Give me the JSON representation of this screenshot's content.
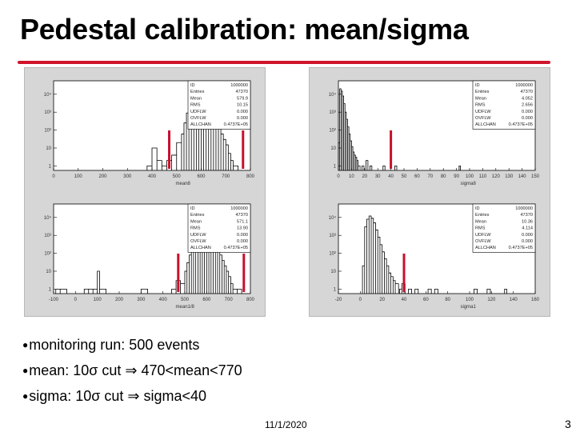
{
  "slide": {
    "title": "Pedestal calibration: mean/sigma",
    "bullets": [
      "monitoring run: 500 events",
      "mean: 10σ cut ⇒ 470<mean<770",
      "sigma: 10σ cut  ⇒ sigma<40"
    ],
    "date": "11/1/2020",
    "page": "3"
  },
  "colors": {
    "rule": "#d0142c",
    "arrow": "#c8102e"
  },
  "chart_data": [
    {
      "type": "histogram",
      "xlabel": "mean8",
      "x_ticks": [
        "0",
        "100",
        "200",
        "300",
        "400",
        "500",
        "600",
        "700",
        "800"
      ],
      "y_ticks": [
        "1",
        "10",
        "10²",
        "10³",
        "10⁴"
      ],
      "xlim": [
        0,
        800
      ],
      "log_y": true,
      "stats": [
        [
          "ID",
          "1000000"
        ],
        [
          "Entries",
          "47370"
        ],
        [
          "Mean",
          "579.9"
        ],
        [
          "RMS",
          "10.15"
        ],
        [
          "UDFLW",
          "0.000"
        ],
        [
          "OVFLW",
          "0.000"
        ],
        [
          "ALLCHAN",
          "0.4737E+05"
        ]
      ],
      "cut_markers_x": [
        470,
        770
      ],
      "bins": [
        [
          380,
          1
        ],
        [
          400,
          10
        ],
        [
          420,
          2
        ],
        [
          440,
          1
        ],
        [
          460,
          2
        ],
        [
          480,
          4
        ],
        [
          500,
          20
        ],
        [
          520,
          60
        ],
        [
          530,
          250
        ],
        [
          540,
          900
        ],
        [
          550,
          2500
        ],
        [
          560,
          5000
        ],
        [
          570,
          7000
        ],
        [
          580,
          8000
        ],
        [
          590,
          7000
        ],
        [
          600,
          5000
        ],
        [
          610,
          3000
        ],
        [
          620,
          2000
        ],
        [
          630,
          1500
        ],
        [
          640,
          800
        ],
        [
          650,
          500
        ],
        [
          660,
          300
        ],
        [
          670,
          150
        ],
        [
          680,
          60
        ],
        [
          690,
          30
        ],
        [
          700,
          15
        ],
        [
          710,
          5
        ],
        [
          720,
          2
        ],
        [
          730,
          1
        ]
      ]
    },
    {
      "type": "histogram",
      "xlabel": "sigma8",
      "x_ticks": [
        "0",
        "10",
        "20",
        "30",
        "40",
        "50",
        "60",
        "70",
        "80",
        "90",
        "100",
        "110",
        "120",
        "130",
        "140",
        "150"
      ],
      "y_ticks": [
        "1",
        "10",
        "10²",
        "10³",
        "10⁴"
      ],
      "xlim": [
        0,
        150
      ],
      "log_y": true,
      "stats": [
        [
          "ID",
          "1000000"
        ],
        [
          "Entries",
          "47370"
        ],
        [
          "Mean",
          "4.052"
        ],
        [
          "RMS",
          "2.656"
        ],
        [
          "UDFLW",
          "0.000"
        ],
        [
          "OVFLW",
          "0.000"
        ],
        [
          "ALLCHAN",
          "0.4737E+05"
        ]
      ],
      "cut_markers_x": [
        40
      ],
      "bins": [
        [
          0,
          20
        ],
        [
          1,
          20000
        ],
        [
          2,
          15000
        ],
        [
          3,
          8000
        ],
        [
          4,
          3000
        ],
        [
          5,
          1000
        ],
        [
          6,
          400
        ],
        [
          7,
          150
        ],
        [
          8,
          60
        ],
        [
          9,
          25
        ],
        [
          10,
          12
        ],
        [
          11,
          6
        ],
        [
          12,
          4
        ],
        [
          13,
          3
        ],
        [
          14,
          2
        ],
        [
          15,
          1
        ],
        [
          18,
          1
        ],
        [
          21,
          2
        ],
        [
          24,
          1
        ],
        [
          34,
          1
        ],
        [
          43,
          1
        ],
        [
          92,
          1
        ]
      ]
    },
    {
      "type": "histogram",
      "xlabel": "mean1/8",
      "x_ticks": [
        "-100",
        "0",
        "100",
        "200",
        "300",
        "400",
        "500",
        "600",
        "700",
        "800"
      ],
      "y_ticks": [
        "1",
        "10",
        "10²",
        "10³",
        "10⁴"
      ],
      "xlim": [
        -100,
        800
      ],
      "log_y": true,
      "stats": [
        [
          "ID",
          "1000000"
        ],
        [
          "Entries",
          "47370"
        ],
        [
          "Mean",
          "571.1"
        ],
        [
          "RMS",
          "13.90"
        ],
        [
          "UDFLW",
          "0.000"
        ],
        [
          "OVFLW",
          "0.000"
        ],
        [
          "ALLCHAN",
          "0.4737E+05"
        ]
      ],
      "cut_markers_x": [
        470,
        770
      ],
      "bins": [
        [
          -90,
          1
        ],
        [
          -70,
          1
        ],
        [
          40,
          1
        ],
        [
          60,
          1
        ],
        [
          80,
          1
        ],
        [
          100,
          10
        ],
        [
          110,
          1
        ],
        [
          300,
          1
        ],
        [
          440,
          1
        ],
        [
          460,
          3
        ],
        [
          480,
          2
        ],
        [
          500,
          10
        ],
        [
          510,
          30
        ],
        [
          520,
          80
        ],
        [
          530,
          300
        ],
        [
          540,
          1000
        ],
        [
          550,
          2500
        ],
        [
          560,
          5000
        ],
        [
          570,
          7000
        ],
        [
          580,
          6000
        ],
        [
          590,
          4000
        ],
        [
          600,
          2500
        ],
        [
          610,
          1500
        ],
        [
          620,
          900
        ],
        [
          630,
          500
        ],
        [
          640,
          300
        ],
        [
          650,
          150
        ],
        [
          660,
          80
        ],
        [
          670,
          40
        ],
        [
          680,
          20
        ],
        [
          690,
          10
        ],
        [
          700,
          5
        ],
        [
          710,
          2
        ],
        [
          720,
          1
        ],
        [
          740,
          1
        ]
      ]
    },
    {
      "type": "histogram",
      "xlabel": "sigma1",
      "x_ticks": [
        "-20",
        "0",
        "20",
        "40",
        "60",
        "80",
        "100",
        "120",
        "140",
        "160"
      ],
      "y_ticks": [
        "1",
        "10",
        "10²",
        "10³",
        "10⁴"
      ],
      "xlim": [
        -20,
        160
      ],
      "log_y": true,
      "stats": [
        [
          "ID",
          "1000000"
        ],
        [
          "Entries",
          "47370"
        ],
        [
          "Mean",
          "10.36"
        ],
        [
          "RMS",
          "4.114"
        ],
        [
          "UDFLW",
          "0.000"
        ],
        [
          "OVFLW",
          "0.000"
        ],
        [
          "ALLCHAN",
          "0.4737E+05"
        ]
      ],
      "cut_markers_x": [
        40
      ],
      "bins": [
        [
          2,
          20
        ],
        [
          4,
          3000
        ],
        [
          6,
          8000
        ],
        [
          8,
          12000
        ],
        [
          10,
          9000
        ],
        [
          12,
          5000
        ],
        [
          14,
          2000
        ],
        [
          16,
          800
        ],
        [
          18,
          300
        ],
        [
          20,
          120
        ],
        [
          22,
          50
        ],
        [
          24,
          20
        ],
        [
          26,
          8
        ],
        [
          28,
          5
        ],
        [
          30,
          3
        ],
        [
          32,
          2
        ],
        [
          36,
          1
        ],
        [
          38,
          2
        ],
        [
          44,
          1
        ],
        [
          50,
          1
        ],
        [
          62,
          1
        ],
        [
          68,
          1
        ],
        [
          104,
          1
        ],
        [
          116,
          1
        ],
        [
          132,
          1
        ]
      ]
    }
  ]
}
